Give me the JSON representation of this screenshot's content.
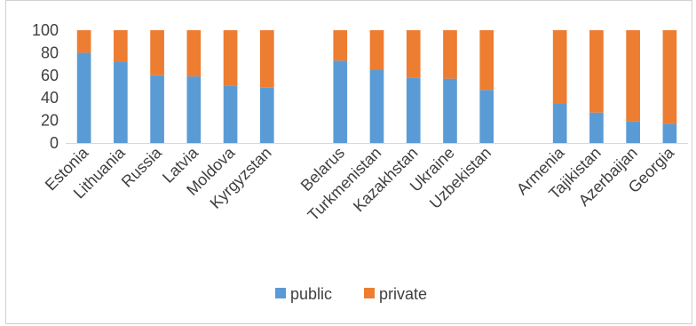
{
  "chart_data": {
    "type": "bar",
    "stacked": true,
    "categories": [
      "Estonia",
      "Lithuania",
      "Russia",
      "Latvia",
      "Moldova",
      "Kyrgyzstan",
      "",
      "Belarus",
      "Turkmenistan",
      "Kazakhstan",
      "Ukraine",
      "Uzbekistan",
      "",
      "Armenia",
      "Tajikistan",
      "Azerbaijan",
      "Georgia"
    ],
    "series": [
      {
        "name": "public",
        "color": "#5b9bd5",
        "values": [
          80,
          72,
          60,
          59,
          51,
          49,
          null,
          73,
          65,
          58,
          57,
          47,
          null,
          35,
          27,
          19,
          17
        ]
      },
      {
        "name": "private",
        "color": "#ed7d31",
        "values": [
          20,
          28,
          40,
          41,
          49,
          51,
          null,
          27,
          35,
          42,
          43,
          53,
          null,
          65,
          73,
          81,
          83
        ]
      }
    ],
    "ylim": [
      0,
      100
    ],
    "yticks": [
      0,
      20,
      40,
      60,
      80,
      100
    ],
    "legend_position": "bottom",
    "grid": false
  }
}
